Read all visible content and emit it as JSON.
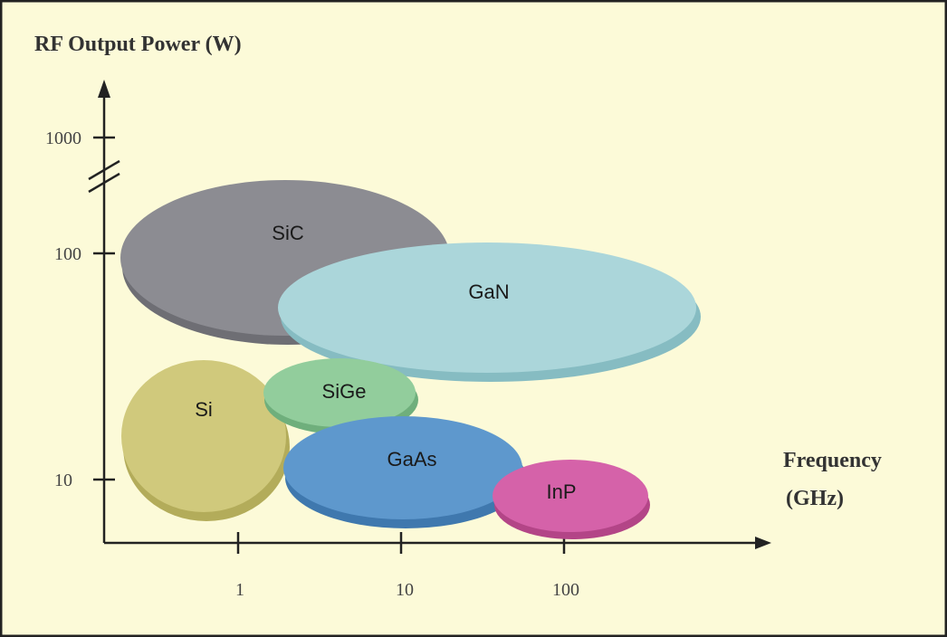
{
  "y_axis": {
    "title": "RF Output Power (W)",
    "ticks": [
      "1000",
      "100",
      "10"
    ]
  },
  "x_axis": {
    "title": [
      "Frequency",
      "(GHz)"
    ],
    "ticks": [
      "1",
      "10",
      "100"
    ]
  },
  "regions": [
    {
      "label": "SiC"
    },
    {
      "label": "GaN"
    },
    {
      "label": "Si"
    },
    {
      "label": "SiGe"
    },
    {
      "label": "GaAs"
    },
    {
      "label": "InP"
    }
  ]
}
